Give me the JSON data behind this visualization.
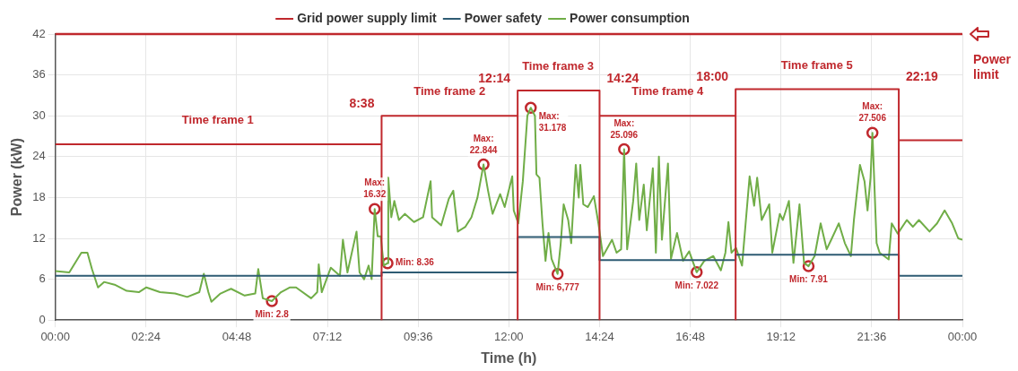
{
  "chart_data": {
    "type": "line",
    "xlabel": "Time (h)",
    "ylabel": "Power (kW)",
    "xlim": [
      0,
      24
    ],
    "ylim": [
      0,
      42
    ],
    "xticks": [
      {
        "value": 0,
        "label": "00:00"
      },
      {
        "value": 2.4,
        "label": "02:24"
      },
      {
        "value": 4.8,
        "label": "04:48"
      },
      {
        "value": 7.2,
        "label": "07:12"
      },
      {
        "value": 9.6,
        "label": "09:36"
      },
      {
        "value": 12,
        "label": "12:00"
      },
      {
        "value": 14.4,
        "label": "14:24"
      },
      {
        "value": 16.8,
        "label": "16:48"
      },
      {
        "value": 19.2,
        "label": "19:12"
      },
      {
        "value": 21.6,
        "label": "21:36"
      },
      {
        "value": 24,
        "label": "00:00"
      }
    ],
    "yticks": [
      0,
      6,
      12,
      18,
      24,
      30,
      36,
      42
    ],
    "grid": true,
    "legend": "top",
    "marker": "none",
    "line_style": "solid",
    "series": [
      {
        "name": "Grid power supply limit",
        "color": "#c0282d",
        "x": [
          0,
          8.633,
          8.633,
          8.633,
          12.233,
          12.233,
          12.233,
          14.4,
          14.4,
          14.4,
          18,
          18,
          18,
          22.317,
          22.317,
          22.317,
          24
        ],
        "values": [
          25.8,
          25.8,
          0,
          30,
          30,
          0,
          33.7,
          33.7,
          0,
          30,
          30,
          0,
          33.9,
          33.9,
          0,
          26.4,
          26.4
        ]
      },
      {
        "name": "Power safety",
        "type": "step",
        "color": "#2e5b73",
        "x": [
          0,
          8.633,
          12.233,
          14.4,
          18,
          22.317,
          24
        ],
        "values": [
          6.5,
          7.0,
          12.2,
          8.8,
          9.6,
          6.5,
          6.5
        ]
      },
      {
        "name": "Power consumption",
        "color": "#70ad47",
        "x": [
          0,
          0.37,
          0.69,
          0.85,
          0.97,
          1.13,
          1.29,
          1.57,
          1.89,
          2.21,
          2.41,
          2.77,
          3.17,
          3.49,
          3.81,
          3.93,
          4.05,
          4.13,
          4.37,
          4.65,
          5.01,
          5.29,
          5.37,
          5.49,
          5.73,
          5.97,
          6.21,
          6.37,
          6.77,
          6.93,
          6.97,
          7.05,
          7.29,
          7.53,
          7.61,
          7.73,
          7.97,
          8.05,
          8.17,
          8.29,
          8.37,
          8.45,
          8.53,
          8.61,
          8.69,
          8.79,
          8.81,
          8.89,
          8.97,
          9.09,
          9.25,
          9.49,
          9.73,
          9.93,
          9.97,
          10.21,
          10.41,
          10.53,
          10.65,
          10.85,
          11.01,
          11.17,
          11.33,
          11.45,
          11.57,
          11.77,
          11.89,
          12.09,
          12.13,
          12.25,
          12.37,
          12.49,
          12.58,
          12.69,
          12.73,
          12.81,
          12.89,
          12.97,
          13.05,
          13.13,
          13.29,
          13.37,
          13.45,
          13.57,
          13.65,
          13.77,
          13.85,
          13.89,
          13.97,
          14.09,
          14.25,
          14.37,
          14.49,
          14.73,
          14.85,
          14.97,
          15.05,
          15.13,
          15.29,
          15.37,
          15.45,
          15.57,
          15.65,
          15.81,
          15.89,
          15.97,
          16.05,
          16.21,
          16.29,
          16.45,
          16.61,
          16.77,
          16.97,
          17.17,
          17.41,
          17.61,
          17.73,
          17.81,
          17.89,
          18.01,
          18.17,
          18.37,
          18.49,
          18.57,
          18.69,
          18.89,
          18.97,
          19.17,
          19.25,
          19.41,
          19.53,
          19.69,
          19.81,
          19.93,
          20.09,
          20.25,
          20.41,
          20.53,
          20.73,
          20.89,
          21.05,
          21.13,
          21.29,
          21.41,
          21.49,
          21.57,
          21.62,
          21.73,
          21.81,
          22.05,
          22.13,
          22.29,
          22.53,
          22.69,
          22.85,
          23.13,
          23.33,
          23.53,
          23.73,
          23.89,
          24
        ],
        "values": [
          7.2,
          7.0,
          9.9,
          9.9,
          7.5,
          4.8,
          5.6,
          5.2,
          4.3,
          4.1,
          4.8,
          4.1,
          3.9,
          3.4,
          4.1,
          6.8,
          4.1,
          2.7,
          3.9,
          4.6,
          3.6,
          3.9,
          7.5,
          3.2,
          2.8,
          4.1,
          4.8,
          4.8,
          3.2,
          4.1,
          8.2,
          4.1,
          7.7,
          6.5,
          11.8,
          7.0,
          13.0,
          7.0,
          6.0,
          8.0,
          6.0,
          16.32,
          12.3,
          12.3,
          8.0,
          8.36,
          20.9,
          15.1,
          17.5,
          14.7,
          15.6,
          14.4,
          15.1,
          20.4,
          15.1,
          13.9,
          17.8,
          19.0,
          13.0,
          13.7,
          15.1,
          18.0,
          22.844,
          19.0,
          15.6,
          18.5,
          16.6,
          21.1,
          16.1,
          14.2,
          20.4,
          30.0,
          31.178,
          30.0,
          21.4,
          20.9,
          14.2,
          8.7,
          12.8,
          9.0,
          6.777,
          11.1,
          17.0,
          14.7,
          11.3,
          22.8,
          18.0,
          22.8,
          17.0,
          16.6,
          18.2,
          14.2,
          9.4,
          11.8,
          9.9,
          10.4,
          25.096,
          10.4,
          17.5,
          23.0,
          14.7,
          19.9,
          13.2,
          22.3,
          9.9,
          24.0,
          11.8,
          23.0,
          9.0,
          12.8,
          8.7,
          10.1,
          7.022,
          8.7,
          9.4,
          7.3,
          9.9,
          14.4,
          9.9,
          10.6,
          8.0,
          21.1,
          16.8,
          20.9,
          14.7,
          17.0,
          9.9,
          15.6,
          14.7,
          17.5,
          8.4,
          17.0,
          8.4,
          7.91,
          9.4,
          14.2,
          10.4,
          11.8,
          14.2,
          11.3,
          9.4,
          14.7,
          22.8,
          20.4,
          16.1,
          20.9,
          27.506,
          11.3,
          9.9,
          8.9,
          14.2,
          12.7,
          14.7,
          13.7,
          14.7,
          13.0,
          14.2,
          16.1,
          14.2,
          12.0,
          11.8
        ]
      },
      {
        "type": "scatter",
        "color": "#c0282d",
        "marker": "circle",
        "x": [
          5.73,
          8.45,
          8.79,
          11.33,
          12.58,
          13.29,
          15.05,
          16.97,
          19.93,
          21.62
        ],
        "values": [
          2.8,
          16.32,
          8.36,
          22.844,
          31.178,
          6.777,
          25.096,
          7.022,
          7.91,
          27.506
        ]
      }
    ],
    "ref_lines": [
      {
        "axis": "y",
        "value": 42,
        "label": "Power limit",
        "color": "#c0282d"
      }
    ],
    "annotations": [
      {
        "text": "Time frame 1",
        "x": 4.3,
        "y": 25.8
      },
      {
        "text": "Time frame 2",
        "x": 10.43,
        "y": 30
      },
      {
        "text": "Time frame 3",
        "x": 13.3,
        "y": 33.7
      },
      {
        "text": "Time frame 4",
        "x": 16.2,
        "y": 30
      },
      {
        "text": "Time frame 5",
        "x": 20.15,
        "y": 33.9
      },
      {
        "text": "8:38",
        "x": 8.633,
        "y": 30
      },
      {
        "text": "12:14",
        "x": 12.233,
        "y": 33.7
      },
      {
        "text": "14:24",
        "x": 14.4,
        "y": 33.7
      },
      {
        "text": "18:00",
        "x": 18,
        "y": 33.9
      },
      {
        "text": "22:19",
        "x": 22.317,
        "y": 33.9
      },
      {
        "text": "Min: 2.8",
        "x": 5.73,
        "y": 2.8
      },
      {
        "text": "Max:\n16.32",
        "x": 8.45,
        "y": 16.32
      },
      {
        "text": "Min: 8.36",
        "x": 8.79,
        "y": 8.36
      },
      {
        "text": "Max:\n22.844",
        "x": 11.33,
        "y": 22.844
      },
      {
        "text": "Max:\n31.178",
        "x": 12.58,
        "y": 31.178
      },
      {
        "text": "Min: 6,777",
        "x": 13.29,
        "y": 6.777
      },
      {
        "text": "Max:\n25.096",
        "x": 15.05,
        "y": 25.096
      },
      {
        "text": "Min: 7.022",
        "x": 16.97,
        "y": 7.022
      },
      {
        "text": "Min: 7.91",
        "x": 19.93,
        "y": 7.91
      },
      {
        "text": "Max:\n27.506",
        "x": 21.62,
        "y": 27.506
      }
    ]
  }
}
